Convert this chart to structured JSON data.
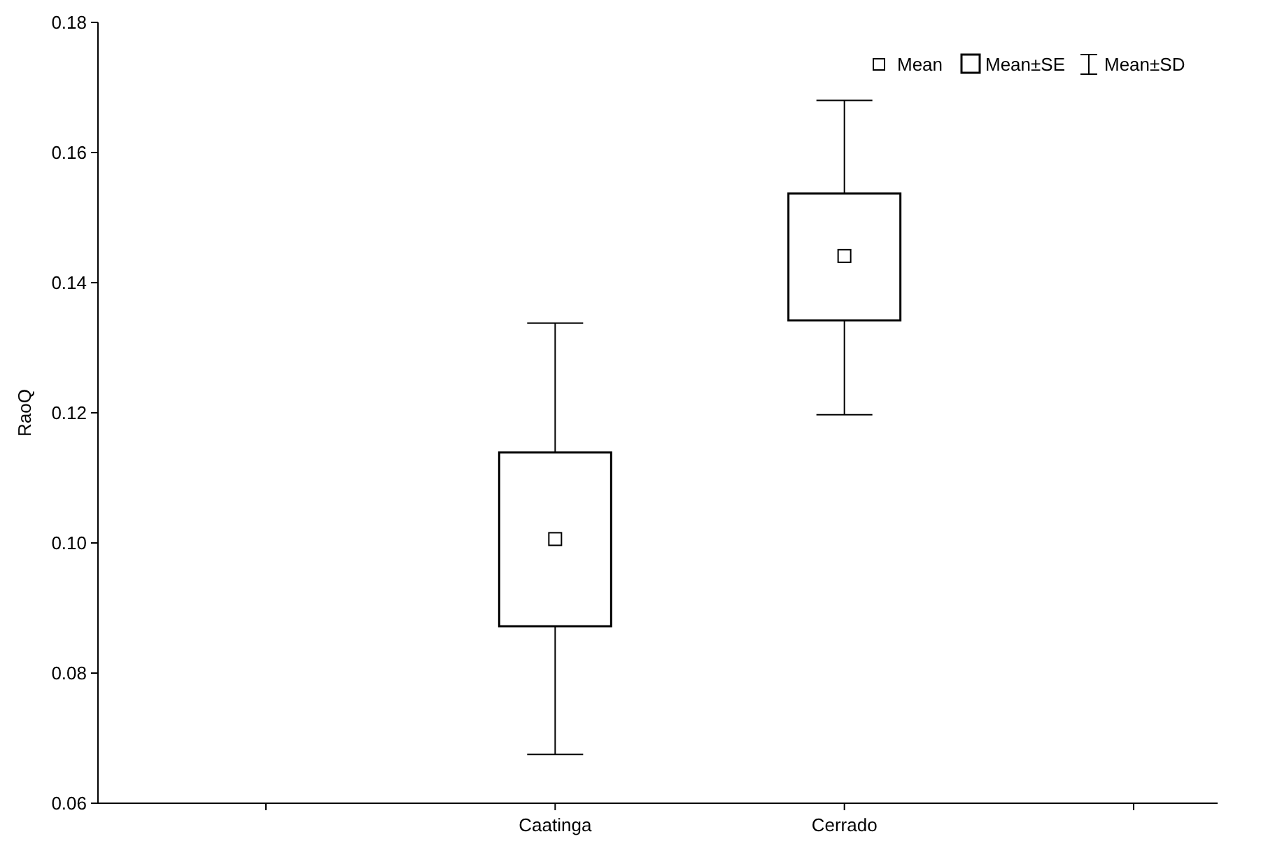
{
  "chart_data": {
    "type": "box",
    "ylabel": "RaoQ",
    "categories": [
      null,
      "Caatinga",
      "Cerrado",
      null
    ],
    "boxes": [
      null,
      {
        "low": 0.0675,
        "q1": 0.0872,
        "median": null,
        "q3": 0.1139,
        "high": 0.1338,
        "mean": 0.1006
      },
      {
        "low": 0.1197,
        "q1": 0.1342,
        "median": null,
        "q3": 0.1537,
        "high": 0.168,
        "mean": 0.1441
      },
      null
    ],
    "ylim": [
      0.06,
      0.18
    ],
    "yticks": [
      {
        "value": 0.06,
        "label": "0.06"
      },
      {
        "value": 0.08,
        "label": "0.08"
      },
      {
        "value": 0.1,
        "label": "0.10"
      },
      {
        "value": 0.12,
        "label": "0.12"
      },
      {
        "value": 0.14,
        "label": "0.14"
      },
      {
        "value": 0.16,
        "label": "0.16"
      },
      {
        "value": 0.18,
        "label": "0.18"
      }
    ],
    "grid": false,
    "annotations": [
      "Mean",
      "Mean±SE",
      "Mean±SD"
    ]
  }
}
